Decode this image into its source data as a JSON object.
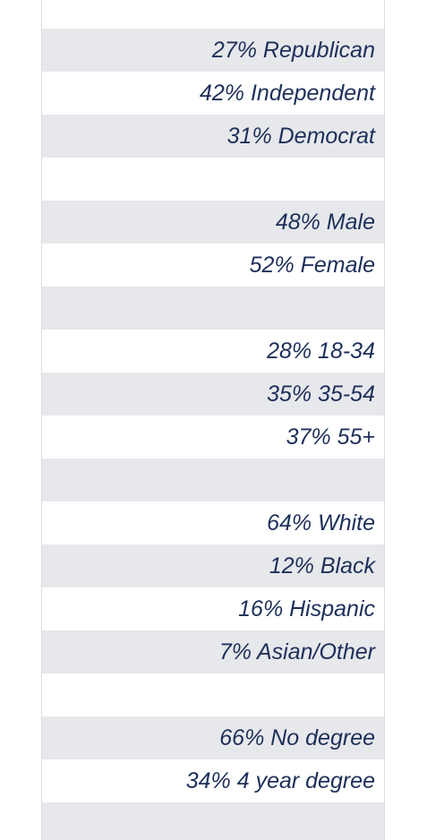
{
  "table": {
    "rows": [
      "27% Republican",
      "42% Independent",
      "31% Democrat",
      null,
      "48% Male",
      "52% Female",
      null,
      "28% 18-34",
      "35% 35-54",
      "37% 55+",
      null,
      "64% White",
      "12% Black",
      "16% Hispanic",
      "7% Asian/Other",
      null,
      "66% No degree",
      "34% 4 year degree",
      null
    ]
  }
}
